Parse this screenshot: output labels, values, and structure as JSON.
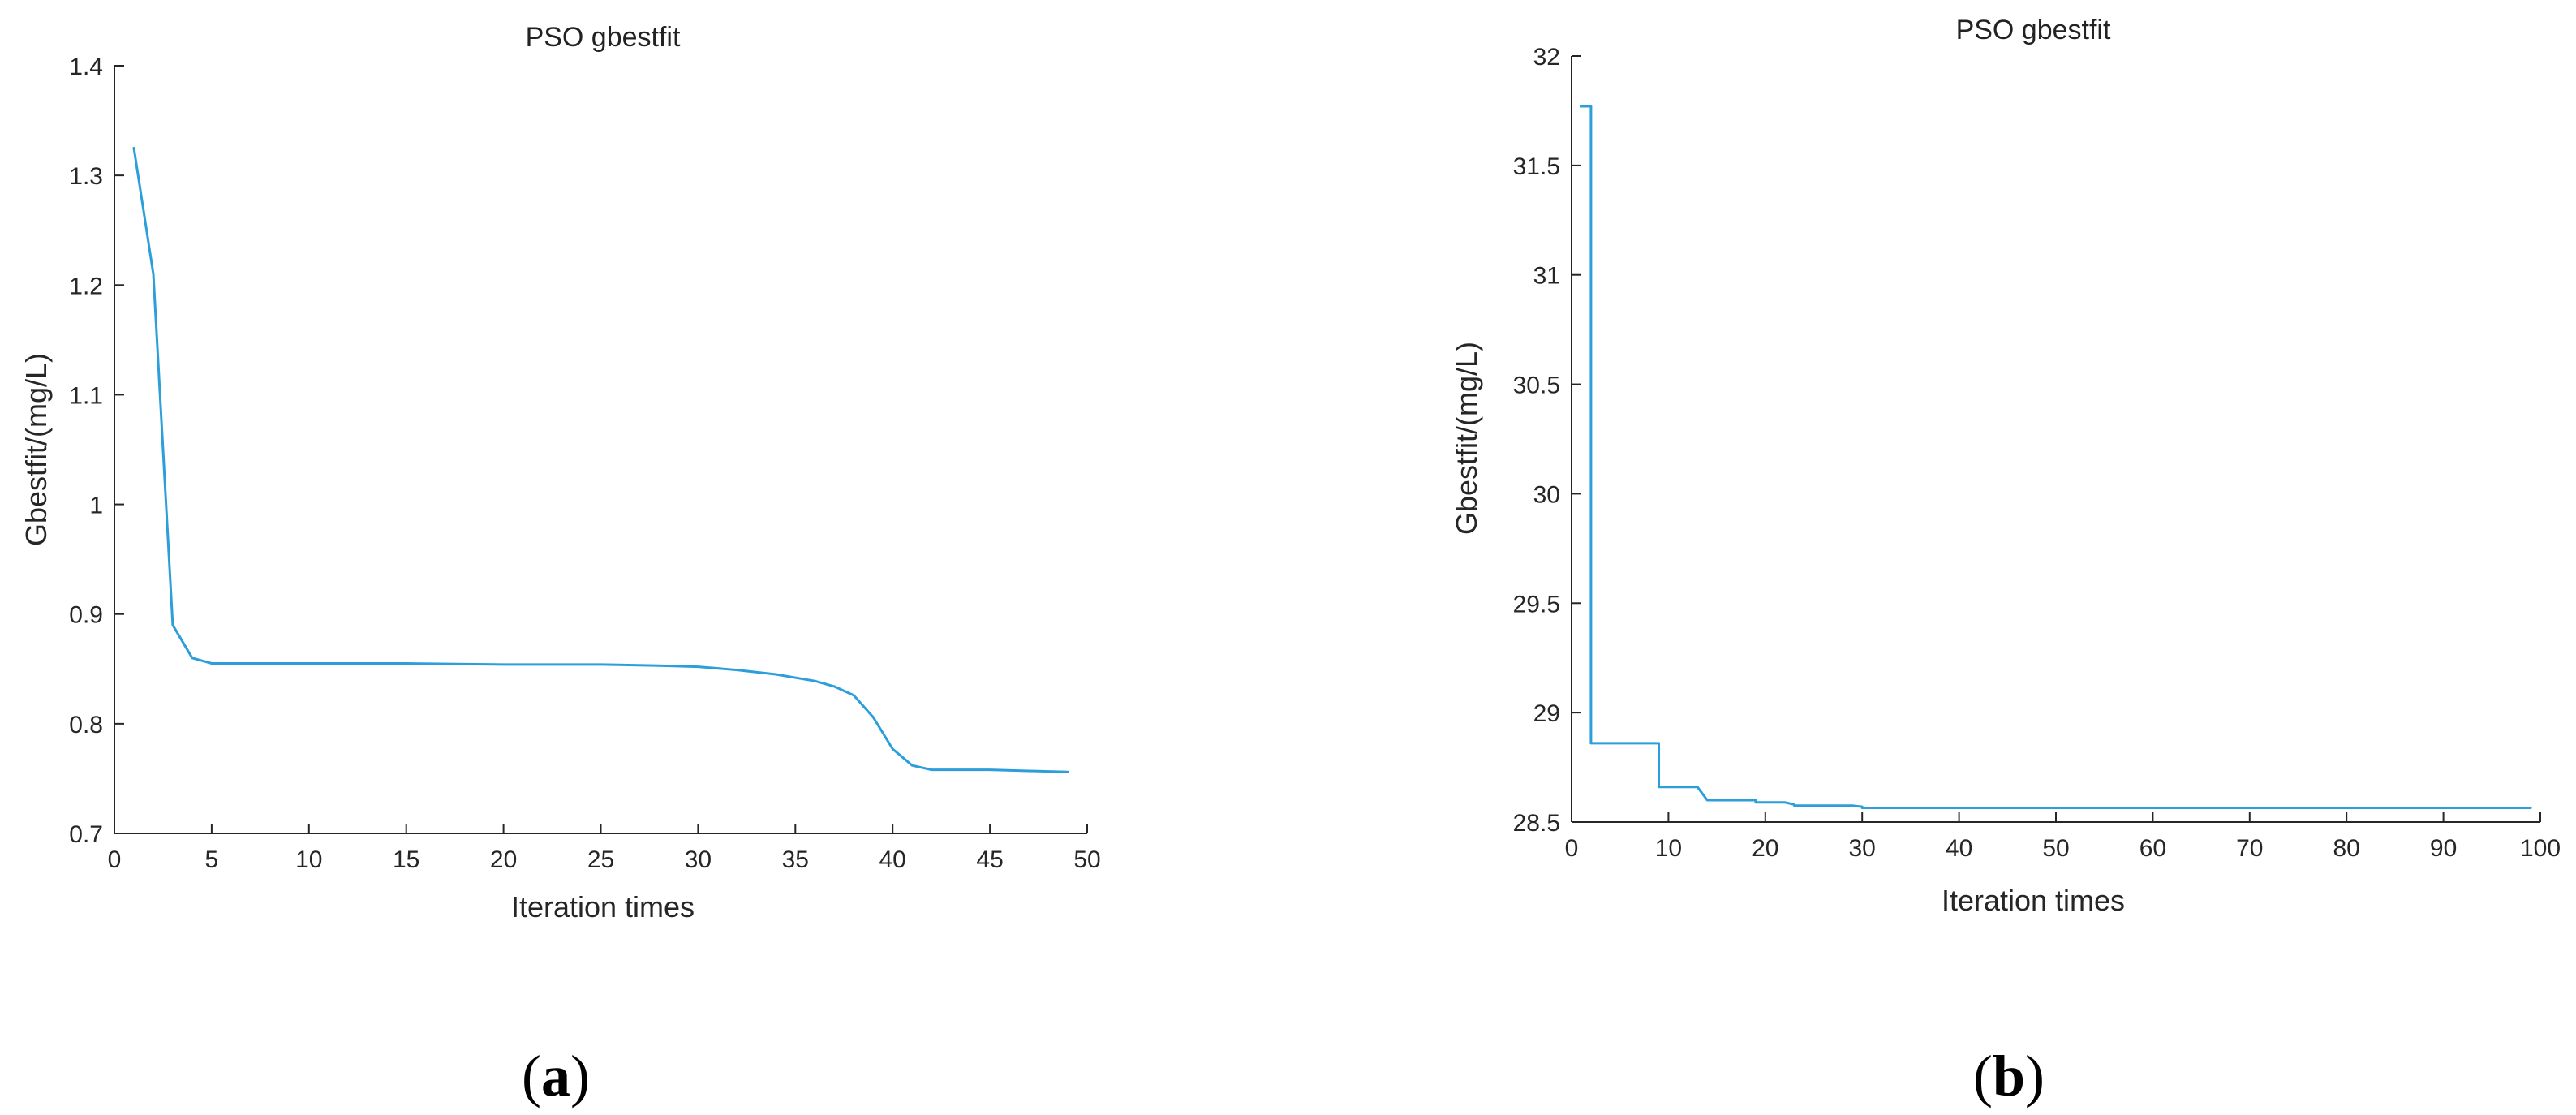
{
  "chart_data": [
    {
      "type": "line",
      "title": "PSO gbestfit",
      "xlabel": "Iteration times",
      "ylabel": "Gbestfit/(mg/L)",
      "xlim": [
        0,
        50
      ],
      "ylim": [
        0.7,
        1.4
      ],
      "xticks": [
        "0",
        "5",
        "10",
        "15",
        "20",
        "25",
        "30",
        "35",
        "40",
        "45",
        "50"
      ],
      "yticks": [
        "0.7",
        "0.8",
        "0.9",
        "1",
        "1.1",
        "1.2",
        "1.3",
        "1.4"
      ],
      "grid": false,
      "color": "#2c9fdb",
      "caption_letter": "a",
      "series": [
        {
          "x": [
            1,
            2,
            3,
            4,
            5,
            6,
            8,
            10,
            15,
            20,
            25,
            28,
            30,
            32,
            34,
            36,
            37,
            38,
            39,
            40,
            41,
            42,
            43,
            45,
            47,
            49
          ],
          "y": [
            1.325,
            1.21,
            0.89,
            0.86,
            0.855,
            0.855,
            0.855,
            0.855,
            0.855,
            0.854,
            0.854,
            0.853,
            0.852,
            0.849,
            0.845,
            0.839,
            0.834,
            0.826,
            0.806,
            0.777,
            0.762,
            0.758,
            0.758,
            0.758,
            0.757,
            0.756
          ]
        }
      ]
    },
    {
      "type": "line",
      "title": "PSO gbestfit",
      "xlabel": "Iteration times",
      "ylabel": "Gbestfit/(mg/L)",
      "xlim": [
        0,
        100
      ],
      "ylim": [
        28.5,
        32
      ],
      "xticks": [
        "0",
        "10",
        "20",
        "30",
        "40",
        "50",
        "60",
        "70",
        "80",
        "90",
        "100"
      ],
      "yticks": [
        "28.5",
        "29",
        "29.5",
        "30",
        "30.5",
        "31",
        "31.5",
        "32"
      ],
      "grid": false,
      "color": "#2c9fdb",
      "caption_letter": "b",
      "series": [
        {
          "x": [
            1,
            2,
            2,
            8,
            9,
            9,
            13,
            14,
            14,
            19,
            19,
            22,
            23,
            23,
            29,
            30,
            30,
            99
          ],
          "y": [
            31.77,
            31.77,
            28.86,
            28.86,
            28.86,
            28.66,
            28.66,
            28.6,
            28.6,
            28.6,
            28.59,
            28.59,
            28.58,
            28.575,
            28.575,
            28.57,
            28.565,
            28.565
          ]
        }
      ]
    }
  ]
}
